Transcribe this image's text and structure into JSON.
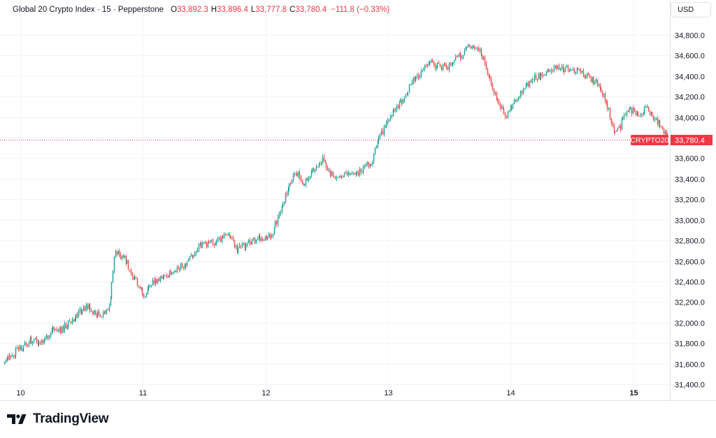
{
  "header": {
    "title": "Global 20 Crypto Index · 15 · Pepperstone",
    "open_label": "O",
    "open_value": "33,892.3",
    "high_label": "H",
    "high_value": "33,896.4",
    "low_label": "L",
    "low_value": "33,777.8",
    "close_label": "C",
    "close_value": "33,780.4",
    "change": "−111.8 (−0.33%)"
  },
  "currency": "USD",
  "price_label": {
    "symbol": "CRYPTO20",
    "price": "33,780.4",
    "value": 33780.4
  },
  "brand": {
    "name": "TradingView"
  },
  "colors": {
    "up": "#26a69a",
    "down": "#ef5350",
    "accent": "#f23645",
    "grid": "#f0f3fa"
  },
  "chart_data": {
    "type": "candlestick",
    "title": "Global 20 Crypto Index · 15 · Pepperstone",
    "ylim": [
      31250,
      34950
    ],
    "y_ticks": [
      31400,
      31600,
      31800,
      32000,
      32200,
      32400,
      32600,
      32800,
      33000,
      33200,
      33400,
      33600,
      33800,
      34000,
      34200,
      34400,
      34600,
      34800
    ],
    "y_tick_labels": [
      "31,400.0",
      "31,600.0",
      "31,800.0",
      "32,000.0",
      "32,200.0",
      "32,400.0",
      "32,600.0",
      "32,800.0",
      "33,000.0",
      "33,200.0",
      "33,400.0",
      "33,600.0",
      "34,000.0",
      "34,200.0",
      "34,400.0",
      "34,600.0",
      "34,800.0"
    ],
    "x_range": [
      9.87,
      15.28
    ],
    "x_ticks": [
      {
        "label": "10",
        "value": 10,
        "bold": false
      },
      {
        "label": "11",
        "value": 11,
        "bold": false
      },
      {
        "label": "12",
        "value": 12,
        "bold": false
      },
      {
        "label": "13",
        "value": 13,
        "bold": false
      },
      {
        "label": "14",
        "value": 14,
        "bold": false
      },
      {
        "label": "15",
        "value": 15,
        "bold": true
      }
    ],
    "last_price": 33780.4,
    "interval_days": 0.010417,
    "path": [
      [
        9.87,
        31600
      ],
      [
        10.0,
        31740
      ],
      [
        10.1,
        31830
      ],
      [
        10.2,
        31790
      ],
      [
        10.28,
        31960
      ],
      [
        10.33,
        31920
      ],
      [
        10.45,
        32040
      ],
      [
        10.55,
        32160
      ],
      [
        10.63,
        32070
      ],
      [
        10.7,
        32080
      ],
      [
        10.74,
        32200
      ],
      [
        10.77,
        32580
      ],
      [
        10.79,
        32680
      ],
      [
        10.85,
        32640
      ],
      [
        10.94,
        32430
      ],
      [
        11.02,
        32280
      ],
      [
        11.1,
        32400
      ],
      [
        11.22,
        32470
      ],
      [
        11.36,
        32570
      ],
      [
        11.45,
        32730
      ],
      [
        11.6,
        32790
      ],
      [
        11.7,
        32860
      ],
      [
        11.78,
        32710
      ],
      [
        11.85,
        32760
      ],
      [
        11.97,
        32820
      ],
      [
        12.06,
        32860
      ],
      [
        12.14,
        33120
      ],
      [
        12.25,
        33480
      ],
      [
        12.32,
        33350
      ],
      [
        12.41,
        33520
      ],
      [
        12.48,
        33600
      ],
      [
        12.54,
        33450
      ],
      [
        12.62,
        33410
      ],
      [
        12.71,
        33440
      ],
      [
        12.78,
        33470
      ],
      [
        12.87,
        33560
      ],
      [
        12.95,
        33830
      ],
      [
        13.05,
        34070
      ],
      [
        13.14,
        34190
      ],
      [
        13.22,
        34380
      ],
      [
        13.36,
        34520
      ],
      [
        13.48,
        34470
      ],
      [
        13.6,
        34600
      ],
      [
        13.66,
        34700
      ],
      [
        13.72,
        34650
      ],
      [
        13.77,
        34620
      ],
      [
        13.83,
        34380
      ],
      [
        13.92,
        34100
      ],
      [
        13.97,
        34020
      ],
      [
        14.05,
        34180
      ],
      [
        14.12,
        34290
      ],
      [
        14.2,
        34390
      ],
      [
        14.28,
        34420
      ],
      [
        14.37,
        34490
      ],
      [
        14.46,
        34470
      ],
      [
        14.55,
        34460
      ],
      [
        14.64,
        34390
      ],
      [
        14.72,
        34320
      ],
      [
        14.8,
        34110
      ],
      [
        14.85,
        33850
      ],
      [
        14.9,
        33910
      ],
      [
        14.96,
        34080
      ],
      [
        15.05,
        34030
      ],
      [
        15.12,
        34090
      ],
      [
        15.18,
        33980
      ],
      [
        15.24,
        33920
      ],
      [
        15.28,
        33780
      ]
    ]
  }
}
